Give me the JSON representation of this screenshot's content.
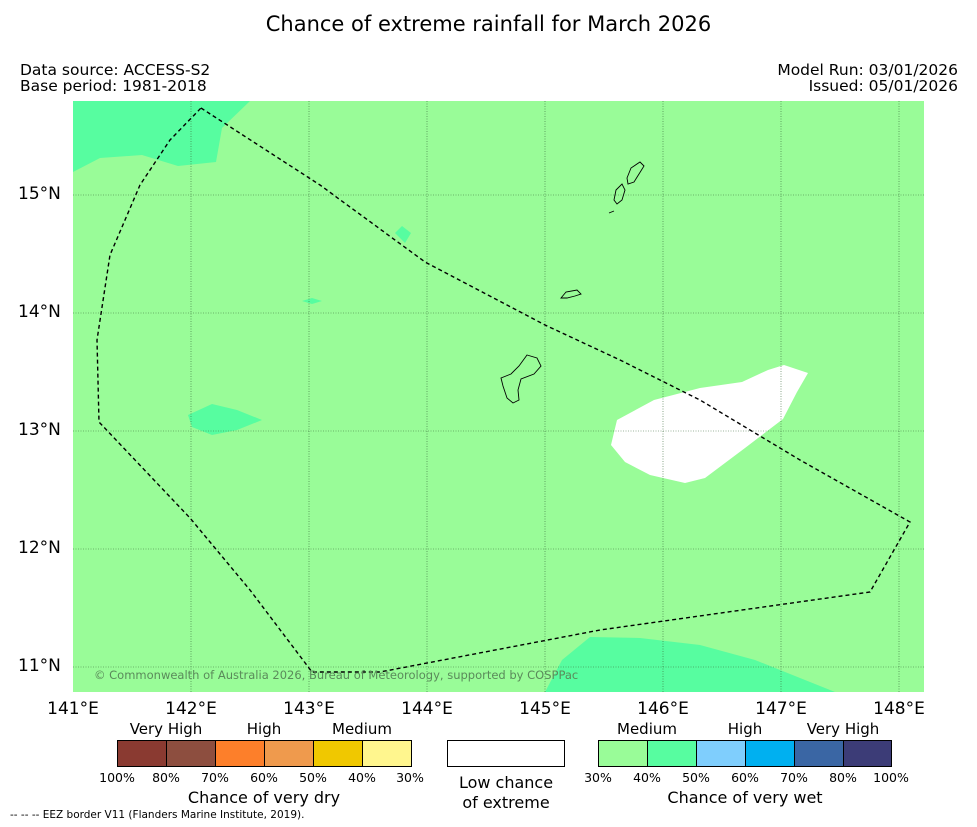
{
  "title": "Chance of extreme rainfall for March 2026",
  "data_source": "Data source: ACCESS-S2",
  "base_period": "Base period: 1981-2018",
  "model_run": "Model Run: 03/01/2026",
  "issued": "Issued: 05/01/2026",
  "map": {
    "lat_labels": [
      "15°N",
      "14°N",
      "13°N",
      "12°N",
      "11°N"
    ],
    "lon_labels": [
      "141°E",
      "142°E",
      "143°E",
      "144°E",
      "145°E",
      "146°E",
      "147°E",
      "148°E"
    ],
    "copyright": "© Commonwealth of Australia 2026, Bureau of Meteorology, supported by COSPPac",
    "background_color": "#99fc98",
    "medium_wet_color": "#57fda0",
    "low_chance_color": "#ffffff",
    "grid_color": "#3a6a3a"
  },
  "legend": {
    "dry": {
      "categories": [
        "Very High",
        "High",
        "Medium"
      ],
      "percent_labels": [
        "100%",
        "80%",
        "70%",
        "60%",
        "50%",
        "40%",
        "30%"
      ],
      "colors": [
        "#8a3a31",
        "#8d4e3f",
        "#fd7f2a",
        "#ef9a4d",
        "#f0c800",
        "#fff68e"
      ],
      "title": "Chance of very dry"
    },
    "low": {
      "label_line1": "Low chance",
      "label_line2": "of extreme"
    },
    "wet": {
      "categories": [
        "Medium",
        "High",
        "Very High"
      ],
      "percent_labels": [
        "30%",
        "40%",
        "50%",
        "60%",
        "70%",
        "80%",
        "100%"
      ],
      "colors": [
        "#99fc98",
        "#57fda0",
        "#7fcefd",
        "#00b0f0",
        "#3a66a4",
        "#3c3c77"
      ],
      "title": "Chance of very wet"
    }
  },
  "eez_note": "-- -- -- EEZ border V11 (Flanders Marine Institute, 2019)."
}
